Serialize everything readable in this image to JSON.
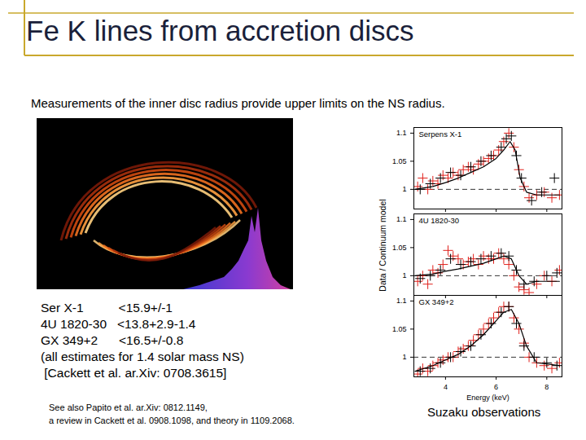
{
  "slide": {
    "title": "Fe K lines from accretion discs",
    "intro": "Measurements of the inner disc radius provide upper limits on the NS radius.",
    "estimates": [
      "Ser X-1          <15.9+/-1",
      "4U 1820-30   <13.8+2.9-1.4",
      "GX 349+2      <16.5+/-0.8",
      "(all estimates for 1.4 solar mass NS)",
      " [Cackett et al. ar.Xiv: 0708.3615]"
    ],
    "notes": [
      "See also Papito et al. ar.Xiv: 0812.1149,",
      "a review in Cackett et al. 0908.1098, and theory in 1109.2068."
    ],
    "caption": "Suzaku observations",
    "ylabel": "Data / Continuum model"
  },
  "chart_data": [
    {
      "type": "scatter",
      "title": "Serpens X-1",
      "xlim": [
        2.75,
        8.6
      ],
      "xticks": [
        4,
        6,
        8
      ],
      "ylim": [
        0.965,
        1.11
      ],
      "yticks": [
        1,
        1.05,
        1.1
      ],
      "tick_labels": "y",
      "reference_y": 1,
      "series": [
        {
          "type": "scatter",
          "marker": "plus",
          "color": "#e0201b",
          "x": [
            2.9,
            3.1,
            3.3,
            3.5,
            3.7,
            3.9,
            4.1,
            4.3,
            4.5,
            4.7,
            4.9,
            5.1,
            5.3,
            5.5,
            5.7,
            5.9,
            6.1,
            6.3,
            6.5,
            6.7,
            6.9,
            7.1,
            7.3,
            7.6,
            7.9,
            8.2,
            8.5
          ],
          "values": [
            1.005,
            1.02,
            1.0,
            1.015,
            1.01,
            1.025,
            1.02,
            1.03,
            1.025,
            1.035,
            1.04,
            1.035,
            1.045,
            1.05,
            1.055,
            1.06,
            1.07,
            1.085,
            1.1,
            1.075,
            1.035,
            1.005,
            0.985,
            0.99,
            0.995,
            0.985,
            0.99
          ]
        },
        {
          "type": "scatter",
          "marker": "plus",
          "color": "#000000",
          "x": [
            3.0,
            3.4,
            3.8,
            4.2,
            4.6,
            5.0,
            5.4,
            5.8,
            6.2,
            6.4,
            6.6,
            6.8,
            7.0,
            7.4,
            7.8,
            8.3
          ],
          "values": [
            1.0,
            1.01,
            1.02,
            1.03,
            1.025,
            1.04,
            1.05,
            1.06,
            1.075,
            1.09,
            1.095,
            1.06,
            1.02,
            0.98,
            0.995,
            1.02
          ]
        },
        {
          "type": "line",
          "line_style": "solid",
          "color": "#000000",
          "x": [
            2.8,
            3.5,
            4,
            4.5,
            5,
            5.5,
            6,
            6.3,
            6.55,
            6.75,
            6.95,
            7.2,
            7.6,
            8.5
          ],
          "values": [
            1.0,
            1.005,
            1.012,
            1.02,
            1.03,
            1.04,
            1.055,
            1.07,
            1.085,
            1.07,
            1.02,
            0.995,
            0.99,
            0.99
          ]
        }
      ]
    },
    {
      "type": "scatter",
      "title": "4U 1820-30",
      "xlim": [
        2.75,
        8.6
      ],
      "xticks": [
        4,
        6,
        8
      ],
      "ylim": [
        0.965,
        1.11
      ],
      "yticks": [
        1,
        1.05,
        1.1
      ],
      "tick_labels": "y",
      "reference_y": 1,
      "series": [
        {
          "type": "scatter",
          "marker": "plus",
          "color": "#e0201b",
          "x": [
            2.9,
            3.1,
            3.3,
            3.5,
            3.7,
            3.9,
            4.1,
            4.3,
            4.5,
            4.7,
            4.9,
            5.1,
            5.3,
            5.5,
            5.7,
            5.9,
            6.1,
            6.3,
            6.5,
            6.7,
            6.9,
            7.1,
            7.3,
            7.6,
            7.9,
            8.2,
            8.5
          ],
          "values": [
            0.99,
            1.0,
            0.985,
            1.01,
            1.005,
            1.02,
            1.045,
            1.035,
            1.03,
            1.02,
            1.025,
            1.03,
            1.02,
            1.035,
            1.03,
            1.03,
            1.04,
            1.03,
            1.02,
            1.0,
            0.98,
            0.975,
            0.97,
            0.985,
            1.0,
            0.99,
            1.01
          ]
        },
        {
          "type": "scatter",
          "marker": "plus",
          "color": "#000000",
          "x": [
            3.0,
            3.4,
            3.8,
            4.2,
            4.6,
            5.0,
            5.4,
            5.8,
            6.2,
            6.5,
            6.8,
            7.1,
            7.5,
            8.0,
            8.4
          ],
          "values": [
            0.995,
            1.0,
            1.01,
            1.03,
            1.02,
            1.025,
            1.03,
            1.035,
            1.04,
            1.035,
            1.01,
            0.985,
            0.99,
            1.0,
            1.005
          ]
        },
        {
          "type": "line",
          "line_style": "solid",
          "color": "#000000",
          "x": [
            2.8,
            3.5,
            4,
            4.5,
            5,
            5.5,
            6,
            6.3,
            6.6,
            6.9,
            7.2,
            7.6,
            8.5
          ],
          "values": [
            1.0,
            1.003,
            1.008,
            1.012,
            1.017,
            1.022,
            1.03,
            1.035,
            1.03,
            1.0,
            0.985,
            0.99,
            0.99
          ]
        }
      ]
    },
    {
      "type": "scatter",
      "title": "GX 349+2",
      "xlabel": "Energy (keV)",
      "xlim": [
        2.75,
        8.6
      ],
      "xticks": [
        4,
        6,
        8
      ],
      "ylim": [
        0.965,
        1.11
      ],
      "yticks": [
        1,
        1.05,
        1.1
      ],
      "reference_y": 1,
      "series": [
        {
          "type": "scatter",
          "marker": "plus",
          "color": "#e0201b",
          "x": [
            2.9,
            3.1,
            3.3,
            3.5,
            3.7,
            3.9,
            4.1,
            4.3,
            4.5,
            4.7,
            4.9,
            5.1,
            5.3,
            5.5,
            5.7,
            5.9,
            6.1,
            6.3,
            6.5,
            6.7,
            6.9,
            7.1,
            7.3,
            7.6,
            7.9,
            8.2,
            8.5
          ],
          "values": [
            0.97,
            0.98,
            0.975,
            0.985,
            0.99,
            0.995,
            1.0,
            1.0,
            1.01,
            1.015,
            1.02,
            1.03,
            1.04,
            1.05,
            1.06,
            1.07,
            1.08,
            1.09,
            1.09,
            1.07,
            1.05,
            1.025,
            1.0,
            0.99,
            0.985,
            0.98,
            0.99
          ]
        },
        {
          "type": "scatter",
          "marker": "plus",
          "color": "#000000",
          "x": [
            3.0,
            3.4,
            3.8,
            4.2,
            4.6,
            5.0,
            5.4,
            5.8,
            6.2,
            6.5,
            6.8,
            7.1,
            7.5,
            8.0,
            8.4
          ],
          "values": [
            0.975,
            0.98,
            0.99,
            1.0,
            1.01,
            1.02,
            1.04,
            1.06,
            1.08,
            1.09,
            1.06,
            1.02,
            1.0,
            0.99,
            0.985
          ]
        },
        {
          "type": "line",
          "line_style": "solid",
          "color": "#000000",
          "x": [
            2.8,
            3.5,
            4,
            4.5,
            5,
            5.5,
            6,
            6.3,
            6.6,
            6.9,
            7.2,
            7.6,
            8.5
          ],
          "values": [
            0.975,
            0.985,
            0.995,
            1.005,
            1.02,
            1.04,
            1.065,
            1.08,
            1.085,
            1.06,
            1.02,
            0.99,
            0.985
          ]
        }
      ]
    }
  ]
}
